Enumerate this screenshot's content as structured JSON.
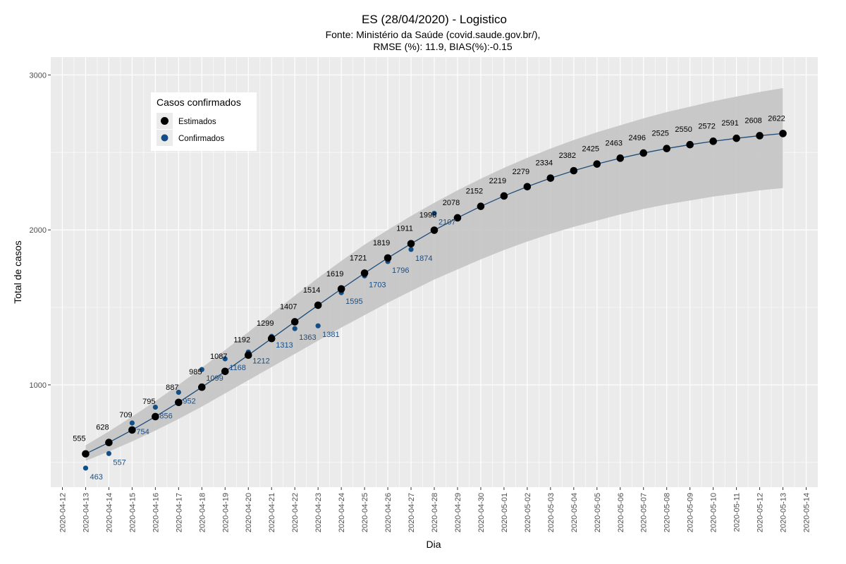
{
  "colors": {
    "panel_bg": "#ebebeb",
    "grid_major": "#ffffff",
    "ribbon": "#c4c4c4",
    "estimated": "#000000",
    "confirmed": "#124e87",
    "line": "#1f4d7a"
  },
  "chart_data": {
    "type": "line",
    "title": "ES (28/04/2020) - Logistico",
    "subtitle_line1": "Fonte: Ministério da Saúde (covid.saude.gov.br/),",
    "subtitle_line2": "RMSE (%): 11.9, BIAS(%):-0.15",
    "xlabel": "Dia",
    "ylabel": "Total de casos",
    "ylim": [
      340,
      3115
    ],
    "xlim": [
      "2020-04-12",
      "2020-05-14"
    ],
    "y_ticks": [
      1000,
      2000,
      3000
    ],
    "y_tick_labels": [
      "1000",
      "2000",
      "3000"
    ],
    "x_tick_labels": [
      "2020-04-12",
      "2020-04-13",
      "2020-04-14",
      "2020-04-15",
      "2020-04-16",
      "2020-04-17",
      "2020-04-18",
      "2020-04-19",
      "2020-04-20",
      "2020-04-21",
      "2020-04-22",
      "2020-04-23",
      "2020-04-24",
      "2020-04-25",
      "2020-04-26",
      "2020-04-27",
      "2020-04-28",
      "2020-04-29",
      "2020-04-30",
      "2020-05-01",
      "2020-05-02",
      "2020-05-03",
      "2020-05-04",
      "2020-05-05",
      "2020-05-06",
      "2020-05-07",
      "2020-05-08",
      "2020-05-09",
      "2020-05-10",
      "2020-05-11",
      "2020-05-12",
      "2020-05-13",
      "2020-05-14"
    ],
    "grid": true,
    "legend": {
      "title": "Casos confirmados",
      "position": "top-left",
      "entries": [
        "Estimados",
        "Confirmados"
      ]
    },
    "series": [
      {
        "name": "Estimados",
        "x": [
          "2020-04-13",
          "2020-04-14",
          "2020-04-15",
          "2020-04-16",
          "2020-04-17",
          "2020-04-18",
          "2020-04-19",
          "2020-04-20",
          "2020-04-21",
          "2020-04-22",
          "2020-04-23",
          "2020-04-24",
          "2020-04-25",
          "2020-04-26",
          "2020-04-27",
          "2020-04-28",
          "2020-04-29",
          "2020-04-30",
          "2020-05-01",
          "2020-05-02",
          "2020-05-03",
          "2020-05-04",
          "2020-05-05",
          "2020-05-06",
          "2020-05-07",
          "2020-05-08",
          "2020-05-09",
          "2020-05-10",
          "2020-05-11",
          "2020-05-12",
          "2020-05-13"
        ],
        "values": [
          555,
          628,
          709,
          795,
          887,
          985,
          1087,
          1192,
          1299,
          1407,
          1514,
          1619,
          1721,
          1819,
          1911,
          1998,
          2078,
          2152,
          2219,
          2279,
          2334,
          2382,
          2425,
          2463,
          2496,
          2525,
          2550,
          2572,
          2591,
          2608,
          2622
        ],
        "labels": [
          "555",
          "628",
          "709",
          "795",
          "887",
          "985",
          "1087",
          "1192",
          "1299",
          "1407",
          "1514",
          "1619",
          "1721",
          "1819",
          "1911",
          "1998",
          "2078",
          "2152",
          "2219",
          "2279",
          "2334",
          "2382",
          "2425",
          "2463",
          "2496",
          "2525",
          "2550",
          "2572",
          "2591",
          "2608",
          "2622"
        ],
        "band_lower": [
          510,
          570,
          635,
          705,
          780,
          860,
          945,
          1030,
          1115,
          1200,
          1285,
          1370,
          1450,
          1530,
          1605,
          1680,
          1745,
          1810,
          1870,
          1925,
          1975,
          2020,
          2060,
          2100,
          2135,
          2165,
          2190,
          2215,
          2235,
          2255,
          2270
        ],
        "band_upper": [
          610,
          700,
          795,
          895,
          1000,
          1110,
          1225,
          1340,
          1460,
          1575,
          1690,
          1800,
          1905,
          2000,
          2090,
          2175,
          2255,
          2330,
          2400,
          2465,
          2525,
          2580,
          2630,
          2675,
          2720,
          2760,
          2795,
          2830,
          2860,
          2890,
          2915
        ]
      },
      {
        "name": "Confirmados",
        "x": [
          "2020-04-13",
          "2020-04-14",
          "2020-04-15",
          "2020-04-16",
          "2020-04-17",
          "2020-04-18",
          "2020-04-19",
          "2020-04-20",
          "2020-04-21",
          "2020-04-22",
          "2020-04-23",
          "2020-04-24",
          "2020-04-25",
          "2020-04-26",
          "2020-04-27",
          "2020-04-28"
        ],
        "values": [
          463,
          557,
          754,
          856,
          952,
          1099,
          1168,
          1212,
          1313,
          1363,
          1381,
          1595,
          1703,
          1796,
          1874,
          2107
        ],
        "labels": [
          "463",
          "557",
          "754",
          "856",
          "952",
          "1099",
          "1168",
          "1212",
          "1313",
          "1363",
          "1381",
          "1595",
          "1703",
          "1796",
          "1874",
          "2107"
        ]
      }
    ]
  }
}
